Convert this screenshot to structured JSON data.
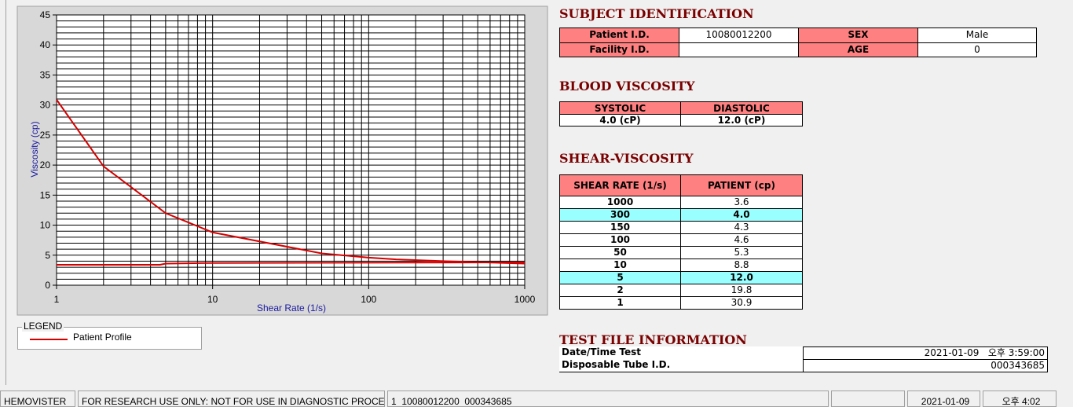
{
  "chart_data": {
    "type": "line",
    "xlabel": "Shear Rate (1/s)",
    "ylabel": "Viscosity (cp)",
    "xlog": true,
    "xlim": [
      1,
      1000
    ],
    "xticks": [
      1,
      10,
      100,
      1000
    ],
    "ylim": [
      0,
      45
    ],
    "yticks": [
      0,
      5,
      10,
      15,
      20,
      25,
      30,
      35,
      40,
      45
    ],
    "grid": true,
    "legend_title": "LEGEND",
    "series": [
      {
        "name": "Patient Profile",
        "color": "#d40000",
        "x": [
          1,
          2,
          5,
          10,
          50,
          100,
          150,
          300,
          1000
        ],
        "values": [
          30.9,
          19.8,
          12.0,
          8.8,
          5.3,
          4.6,
          4.3,
          4.0,
          3.6
        ]
      },
      {
        "color": "#d40000",
        "x": [
          1,
          4.6,
          5,
          10,
          1000
        ],
        "values": [
          3.4,
          3.4,
          3.6,
          3.7,
          3.8
        ]
      }
    ]
  },
  "subject": {
    "title": "SUBJECT IDENTIFICATION",
    "rows": [
      [
        "Patient I.D.",
        "10080012200",
        "SEX",
        "Male"
      ],
      [
        "Facility I.D.",
        null,
        "AGE",
        "0"
      ]
    ]
  },
  "blood": {
    "title": "BLOOD VISCOSITY",
    "headers": [
      "SYSTOLIC",
      "DIASTOLIC"
    ],
    "values": [
      "4.0 (cP)",
      "12.0 (cP)"
    ]
  },
  "shear": {
    "title": "SHEAR-VISCOSITY",
    "headers": [
      "SHEAR RATE (1/s)",
      "PATIENT (cp)"
    ],
    "highlight_rows": [
      1,
      6
    ],
    "highlight_color": "#99ffff",
    "rows": [
      [
        "1000",
        "3.6"
      ],
      [
        "300",
        "4.0"
      ],
      [
        "150",
        "4.3"
      ],
      [
        "100",
        "4.6"
      ],
      [
        "50",
        "5.3"
      ],
      [
        "10",
        "8.8"
      ],
      [
        "5",
        "12.0"
      ],
      [
        "2",
        "19.8"
      ],
      [
        "1",
        "30.9"
      ]
    ]
  },
  "test_file": {
    "title": "TEST FILE INFORMATION",
    "rows": [
      [
        "Date/Time Test",
        "2021-01-09   오후 3:59:00"
      ],
      [
        "Disposable Tube I.D.",
        "000343685"
      ]
    ]
  },
  "status_bar": [
    "HEMOVISTER",
    "FOR RESEARCH USE ONLY: NOT FOR USE IN DIAGNOSTIC PROCEDURES",
    "1  10080012200  000343685",
    "2021-01-09",
    "오후 4:02"
  ]
}
